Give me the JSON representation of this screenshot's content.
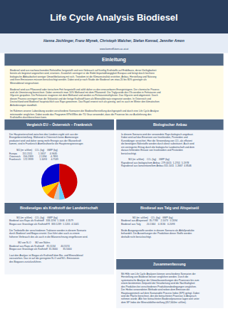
{
  "chart_data": {
    "type": "pie",
    "title": "Life Cycle Analysis Biodiesel",
    "subtitle": "Hanna Jöchlinger, Franz Mlynek, Christoph Walcher, Stefan Konrad, Jennifer Amon",
    "values": [
      45,
      30,
      8,
      7,
      5,
      5
    ],
    "colors": [
      "#cc0000",
      "#0000cc",
      "#ffcc00",
      "#ff6600",
      "#cccccc",
      "#66ccff"
    ],
    "data_labels": false,
    "annotations": [
      "www.komreKöves.ac.at.at",
      "Einleitung",
      "Biodiesel wird aus nachwachsenden Rohstoffen hergestellt und sein Gebrauch soll künftig Kraftstoffe auf Erdölbasis, deren Verfügbarkeit\nbereits als begrenzt angesehen wird, ersetzen. Zusätzlich verringert er die Erdöl-Importabhängigkeit Europas und bringt durch leichtere\nbiologische Abbaubarkeit weniger Umweltbelastung mit sich. Trotzdem ist die Klimaneutralität erstritten. Anbau, Herstellung und Nutzung\nund ihren Emissionen müssen berücksichtigt werden. Dabei wird je nach Studie der Biodiesel um etwa 20 bis 80% günstiger als\nMineraldiesel eingeschätzt.\n\nBiodiesel wird aus Pflanzenöl oder tierischem Fett hergestellt und zählt daher zu den erneuerbaren Energieträgern. Der chemische Prozess\nwird als Umesterung bezeichnet. Dabei vermischt man 10% Methanol mit dem Pflanzenöl. Die Triglyceride des Öls werden in Fettsäuren und\nGlycerin gespalten. Die Fettsäuren reagieren mit dem Methanol und werden zu Fettsäuremethylester. Das Glycerin wird abgetrennt. Durch\ndiesen Prozess verringert man die Viskosität und der fertige Kraftstoff kann als Mineralölersatz eingesetzt werden. In Österreich und\nDeutschland wird Biodiesel hauptsächlich aus Raps gewonnen. Das Rapöl erweist sich als günstig, weil es auch im Winter den klimatischen\nAnforderungen standhält.\n\nIm Rahmen unserer Laborübung wurden verschiedene Szenarien der Biodieselherstellung durchgespielt und durch eine Life Cycle Analyse\nmiteinander verglichen. Dabei wurde das Programm KPInVWes der TU Graz verwendet, dass die Prozesse bis zur Auslieferung des\nKraftstoffes durchberechnen kann.",
      "Vergleich EU – Österreich – Frankreich",
      "Der Hauptunterschied zwischen den Ländern ergibt sich aus der\nEnergiebereitstellung. Während in Österreich keine Atomenergie\nproduziert wird und daher wenig mehr Energie aus der Wasserkraft\nkommt, sind in Frankreich Atomkraftwerke die Hauptenergieerzeuger.\n\n           MJ (m² a/t/km)    CO₂ (kg)    GWP (kg)\nEuropa        151.1511         1.1657      4.9445\nÖsterreich    156.2333         2.1394      4.7891\nFrankreich    172.9999         1.1093      4.7539",
      "Biologischer Anbau",
      "In diesem Szenario wird der verwendete Raps biologisch angebaut.\nDabei wird auf das Einsetzen von Insektiziden, Pestiziden und\nKunstdünger verzichtet. Hier die Verwendung von CO₂ als effizient\ndie benötigten Nährstoffe werden durch diese substituiert. Auch wird\nein verringerter Ertrag durch die biologische Landwirtschaft und dem\ndaraus fehlenden Einsatz von Insektiziden und Pestiziden\nberücksichtigt.\n\n           MJ (m² a/t/km)    CO₂ (kg)    GWP (kg)\nRapsdiesel aus biologischem Anbau  279.0015  1.2701  5.1978\nRapsdiesel aus konventionellem Anbau 315.1011  1.2667  4.8546",
      "Biodiesel aus Talg und Altspeiseöl",
      "                 MJ (m² a/t/km)    CO₂ (kg)   GWP (kg)\nBiodiesel aus Altspeiseöl  35.7783    2.1073   0.2094\nBiodiesel aus Talg         20.1344    0.3130   0.2093\n\nBeide Ausgangsstoffe werden in diesem Szenario als Abfallprodukte\nbehandelt. Die Auswirkungen der Produktion dieser Stoffe werden\ndeshalb nicht berücksichtigt.",
      "Biodieselgas als Kraftstoff der Landwirtschaft",
      "           MJ (m² a/t/km)    CO₂ (kg)    GWP (kg)\nBiodiesel aus Raps als Kraftstoff   333.1194  1.1006  4.3579\nBiogas aus Grassilage als Kraftstoff R  333.1239  1.1205  4.1041\n\nDie Treibstoffe der verschiedenen Traktoren werden in diesem Szenario\ndurch Biodiesel und Biogas ersetzt. Das führt aber auch zu einem\nhöheren Verbrauch des als auch in die Bilanzrechnung eingeflossen wird.\n\n             MJ von N₂O      MJ von Nährs\nBiodiesel aus Raps als Kraftstoff    81.5134        40.5574\nBiogas aus Grassilage als Kraftstoff  31.3000        35.5000\n\nLaut den Analyse ist Biogas als Kraftstoff dem Bio- und Mineraldiesel\nvorzuziehen. Das ist auf die geringsten N₂O und NO₂ Emissionen\ndes Biogases zurückzuführen.",
      "Zusammenfassung",
      "Mit Hilfe von Life Cycle Analysen können verschiedene Szenarien der\nHerstellung von Biodiesel besser verglichen werden. Durch die\nsystematische Analyse der Umweltauswirkungen des Prozesses bis zum\neinem bestimmten Zeitpunkt der Verarbeitung wird die Nachhaltigkeit\ndes Produktes bei verschiedenen Produktionsbedingungen verglichen.\nDer Herbei verwendeten Methode wird neben dem Emission die\nHauptaugenmerk auf dem Sustainable Process Index (SPI) gelegt. Dabei\nwird die Fläche berechnet, den die betrachteten Prozesse in Anspruch\nnehmen würde. Alle hier betrachteten Biodieselprozesse lagen weit unter\ndem SP Index der Mineralölölherstellung (657,644m² a/t/km)."
    ]
  }
}
